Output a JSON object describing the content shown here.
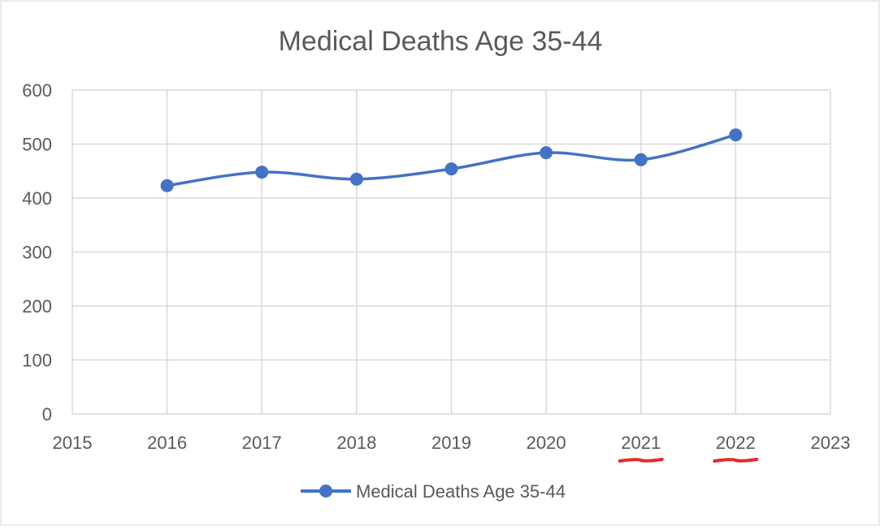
{
  "chart_data": {
    "type": "line",
    "title": "Medical Deaths Age 35-44",
    "xlabel": "",
    "ylabel": "",
    "xlim": [
      2015,
      2023
    ],
    "ylim": [
      0,
      600
    ],
    "x_ticks": [
      "2015",
      "2016",
      "2017",
      "2018",
      "2019",
      "2020",
      "2021",
      "2022",
      "2023"
    ],
    "y_ticks": [
      "0",
      "100",
      "200",
      "300",
      "400",
      "500",
      "600"
    ],
    "grid": true,
    "legend_position": "bottom",
    "smooth": true,
    "series": [
      {
        "name": "Medical Deaths Age 35-44",
        "color": "#4472C4",
        "x": [
          2016,
          2017,
          2018,
          2019,
          2020,
          2021,
          2022
        ],
        "values": [
          423,
          448,
          435,
          454,
          484,
          471,
          517
        ]
      }
    ],
    "annotations": [
      {
        "type": "underline",
        "target_tick": "2021",
        "color": "#E8282B"
      },
      {
        "type": "underline",
        "target_tick": "2022",
        "color": "#E8282B"
      }
    ]
  }
}
